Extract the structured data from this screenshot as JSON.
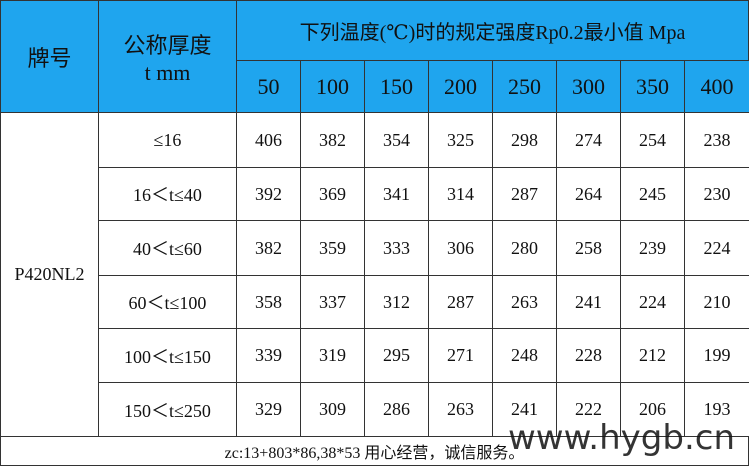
{
  "table": {
    "header": {
      "grade": "牌号",
      "thickness": [
        "公称厚度",
        "t mm"
      ],
      "temp_title": "下列温度(℃)时的规定强度Rp0.2最小值 Mpa",
      "temps": [
        50,
        100,
        150,
        200,
        250,
        300,
        350,
        400
      ]
    },
    "grade": "P420NL2",
    "rows": [
      {
        "thickness": "≤16",
        "values": [
          406,
          382,
          354,
          325,
          298,
          274,
          254,
          238
        ]
      },
      {
        "thickness": "16＜t≤40",
        "values": [
          392,
          369,
          341,
          314,
          287,
          264,
          245,
          230
        ]
      },
      {
        "thickness": "40＜t≤60",
        "values": [
          382,
          359,
          333,
          306,
          280,
          258,
          239,
          224
        ]
      },
      {
        "thickness": "60＜t≤100",
        "values": [
          358,
          337,
          312,
          287,
          263,
          241,
          224,
          210
        ]
      },
      {
        "thickness": "100＜t≤150",
        "values": [
          339,
          319,
          295,
          271,
          248,
          228,
          212,
          199
        ]
      },
      {
        "thickness": "150＜t≤250",
        "values": [
          329,
          309,
          286,
          263,
          241,
          222,
          206,
          193
        ]
      }
    ],
    "footer": {
      "note": "zc:13+803*86,38*53 用心经营，诚信服务。",
      "watermark": "www.hygb.cn"
    }
  }
}
